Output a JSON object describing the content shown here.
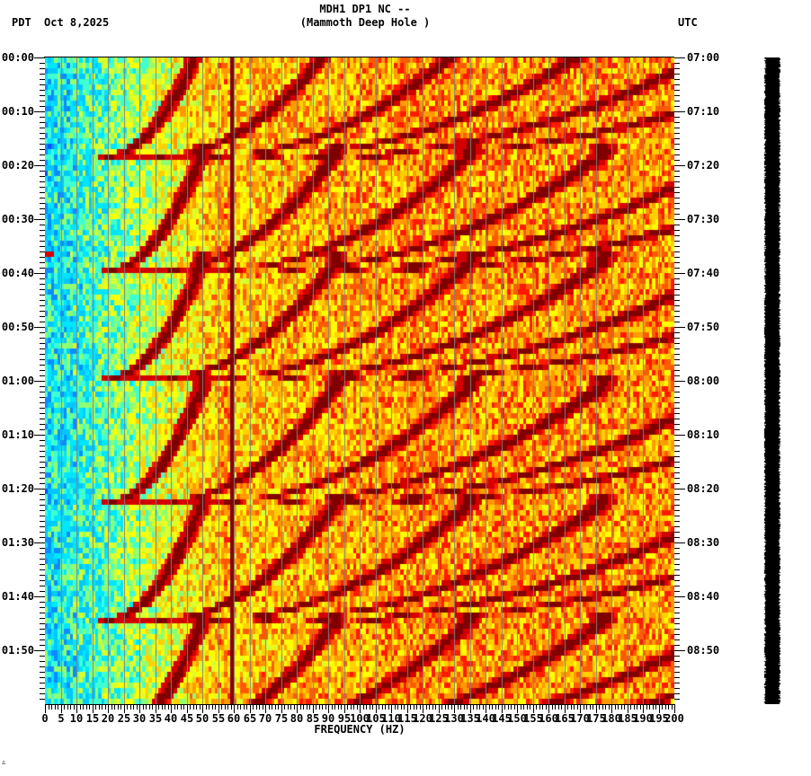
{
  "header": {
    "station_line": "MDH1 DP1 NC --",
    "station_name": "(Mammoth Deep Hole )",
    "left_timezone": "PDT",
    "date": "Oct 8,2025",
    "right_timezone": "UTC"
  },
  "footer_mark": "∴",
  "colors": {
    "background": "#ffffff",
    "grid_line": "#808080",
    "palette": [
      "#0055ff",
      "#0a8cff",
      "#00c8ff",
      "#00e6ff",
      "#40ffd0",
      "#90ff70",
      "#d8ff30",
      "#ffff00",
      "#ffd000",
      "#ff9a00",
      "#ff5a00",
      "#ff1a00",
      "#d40000",
      "#800000"
    ],
    "trace": "#000000"
  },
  "chart_data": {
    "type": "heatmap",
    "title": "MDH1 DP1 NC -- (Mammoth Deep Hole )",
    "xlabel": "FREQUENCY (HZ)",
    "ylabel_left": "PDT",
    "ylabel_right": "UTC",
    "date": "Oct 8,2025",
    "xlim": [
      0,
      200
    ],
    "x_ticks": [
      0,
      5,
      10,
      15,
      20,
      25,
      30,
      35,
      40,
      45,
      50,
      55,
      60,
      65,
      70,
      75,
      80,
      85,
      90,
      95,
      100,
      105,
      110,
      115,
      120,
      125,
      130,
      135,
      140,
      145,
      150,
      155,
      160,
      165,
      170,
      175,
      180,
      185,
      190,
      195,
      200
    ],
    "x_minor_tick_step_hz": 1,
    "y_range_minutes": [
      0,
      120
    ],
    "y_ticks_left": [
      "00:00",
      "00:10",
      "00:20",
      "00:30",
      "00:40",
      "00:50",
      "01:00",
      "01:10",
      "01:20",
      "01:30",
      "01:40",
      "01:50"
    ],
    "y_ticks_right": [
      "07:00",
      "07:10",
      "07:20",
      "07:30",
      "07:40",
      "07:50",
      "08:00",
      "08:10",
      "08:20",
      "08:30",
      "08:40",
      "08:50"
    ],
    "y_minor_tick_step_min": 1,
    "grid": {
      "vertical_every_hz": 5
    },
    "color_scale": "jet-like: blue (low power) to dark red (high power)",
    "features": {
      "low_freq_band_hz": [
        0,
        22
      ],
      "low_freq_band_color": "cyan/blue",
      "high_freq_band_hz": [
        130,
        200
      ],
      "high_freq_band_color": "orange/yellow/red",
      "persistent_line_hz": 60,
      "harmonic_arc_cycle_minutes": 21.5,
      "arc_cycle_end_minutes": [
        18.3,
        39.6,
        59.6,
        82.6,
        104.3
      ],
      "arc_fundamental_end_hz": 20,
      "arc_fundamental_start_hz": 50,
      "arc_harmonic_count": 6,
      "artifact_at_minute": 36.3,
      "artifact_freq_hz": [
        0,
        3
      ]
    },
    "seismogram_trace": {
      "position": "right",
      "color": "#000000"
    }
  }
}
